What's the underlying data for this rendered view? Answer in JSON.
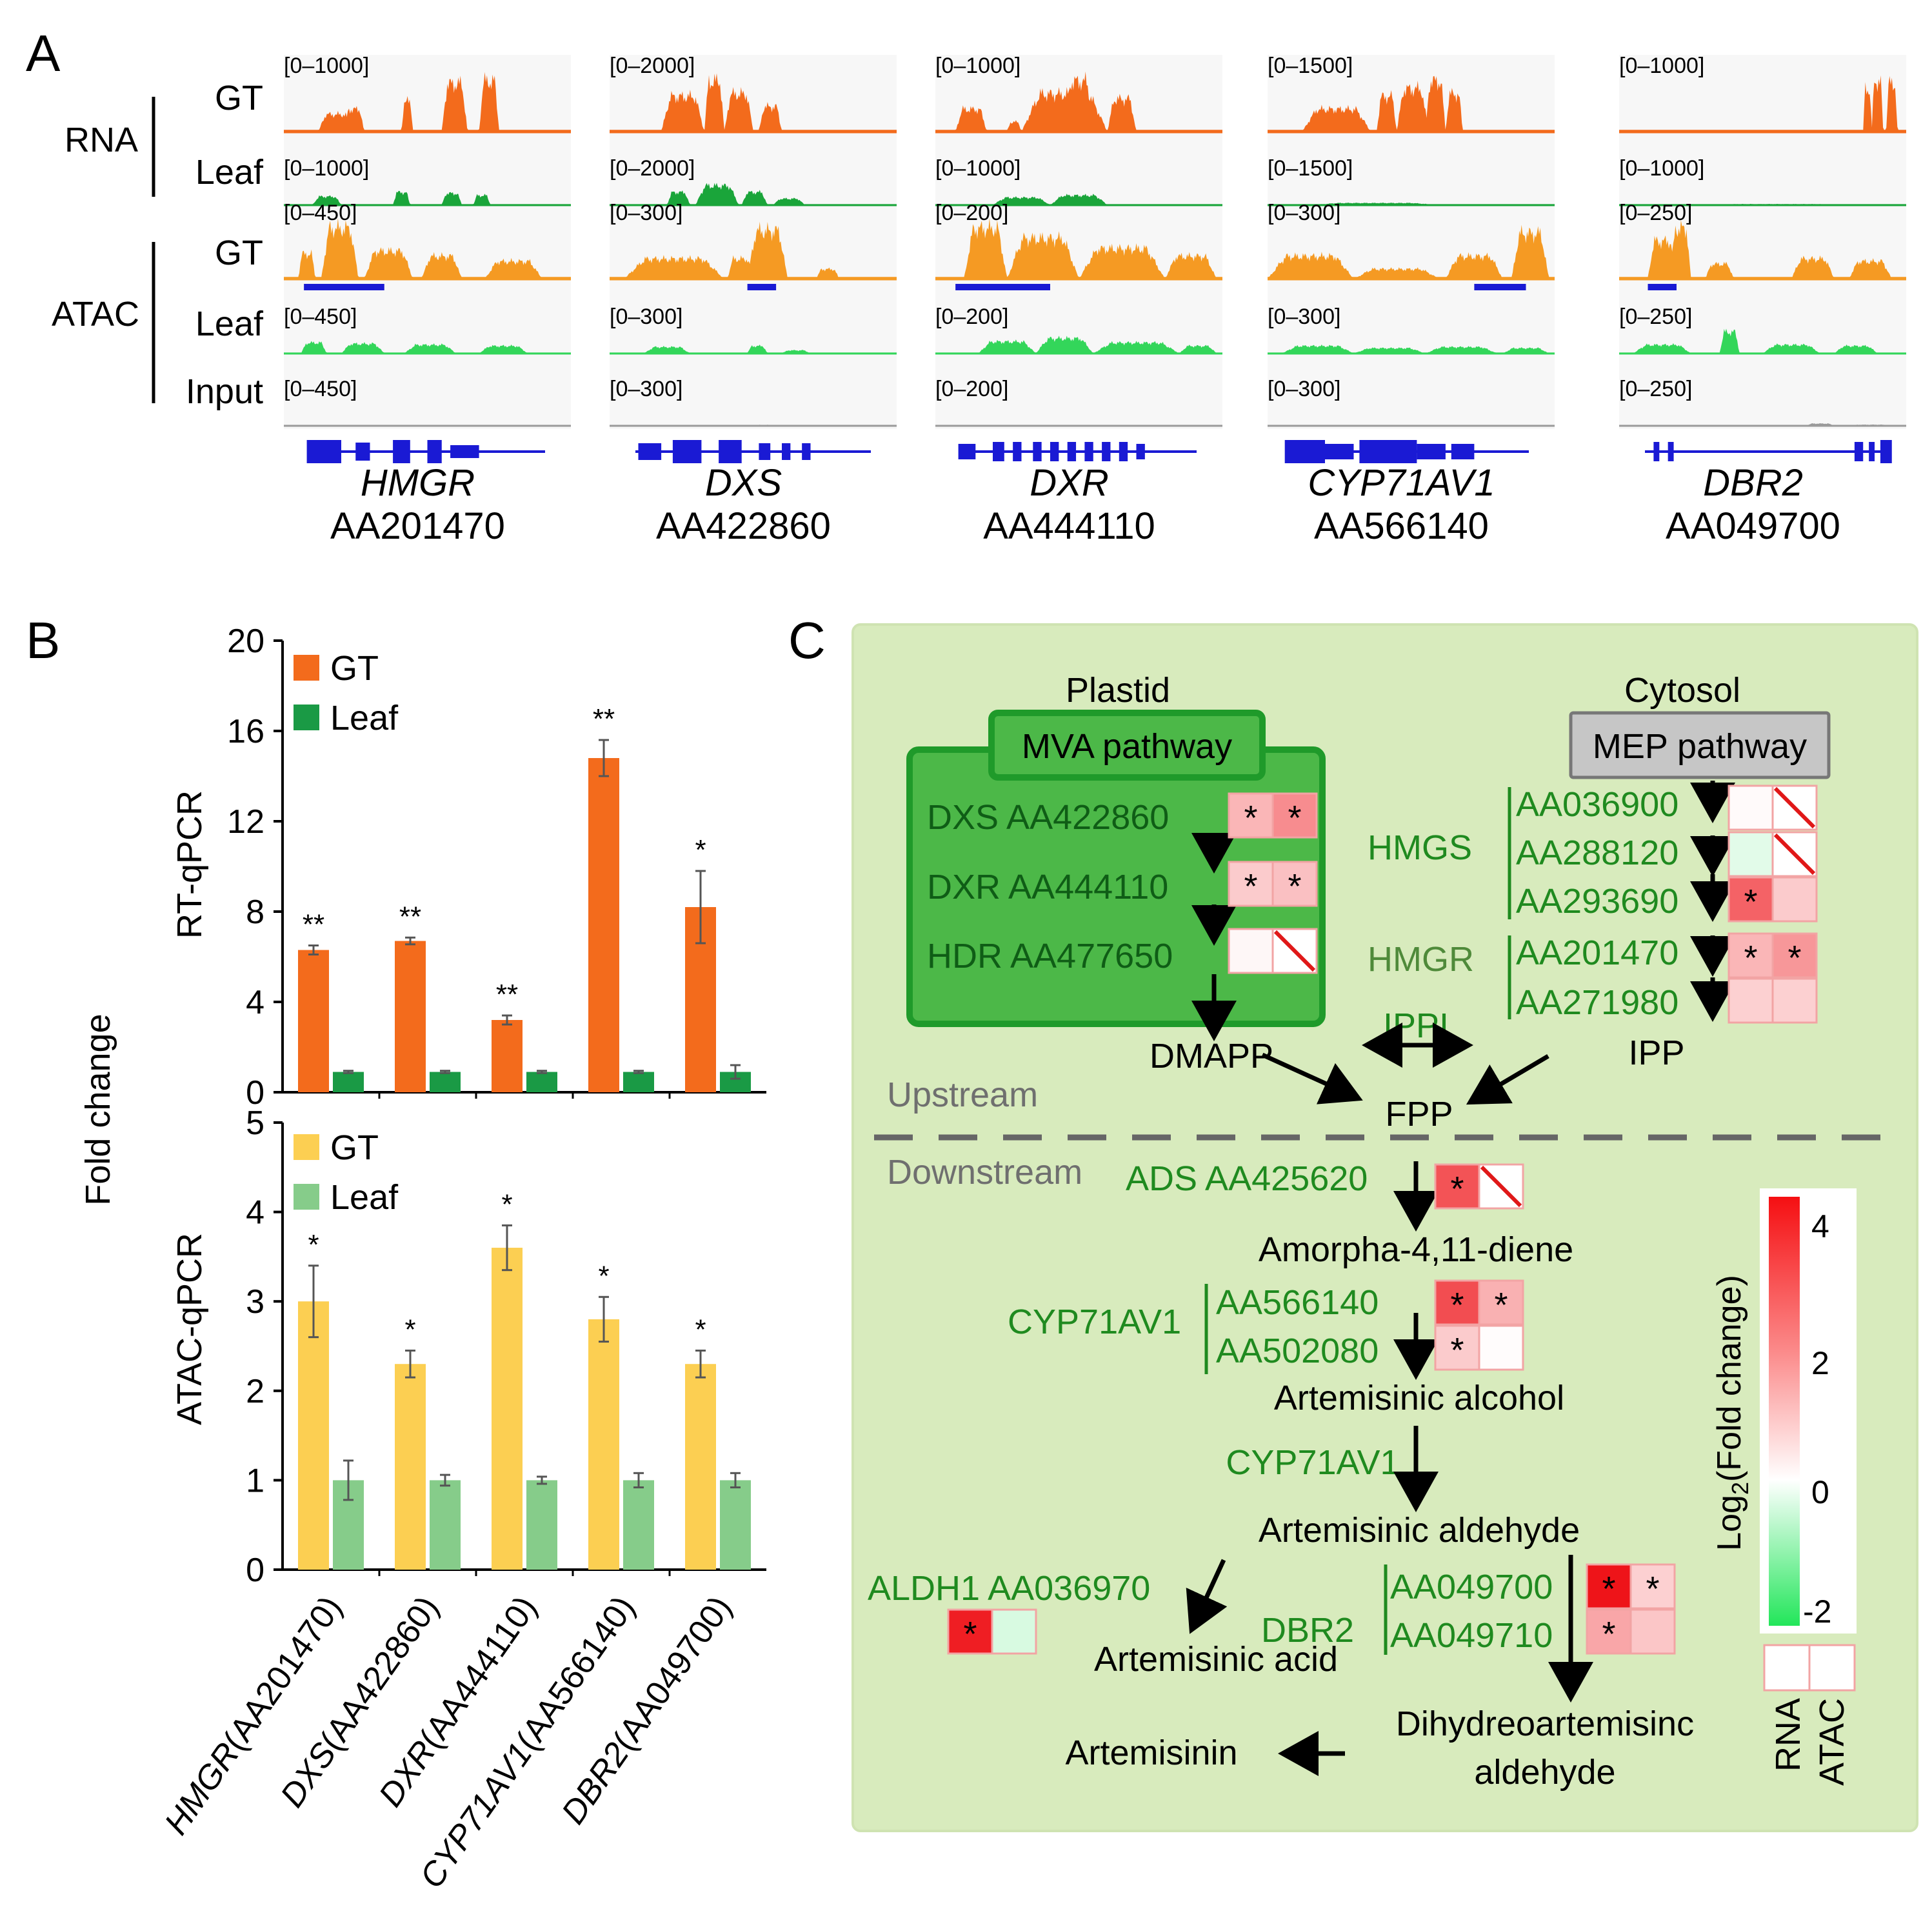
{
  "colors": {
    "rna_gt": "#f36b1c",
    "rna_leaf": "#1aa53a",
    "atac_gt": "#f59a23",
    "atac_leaf": "#33d65a",
    "input": "#9a9a9a",
    "gene_model": "#1a1ad4",
    "bar_rt_gt": "#f36b1c",
    "bar_rt_leaf": "#1a9a45",
    "bar_atac_gt": "#fccf52",
    "bar_atac_leaf": "#86cc8a",
    "pathway_bg": "#d8ebbd",
    "mva_box": "#4cb848",
    "green_text": "#1f8a1f"
  },
  "panelA": {
    "label": "A",
    "group_labels": {
      "rna": "RNA",
      "atac": "ATAC"
    },
    "track_labels": [
      "GT",
      "Leaf",
      "GT",
      "Leaf",
      "Input"
    ],
    "genes": [
      {
        "name": "HMGR",
        "id": "AA201470",
        "ranges": [
          "[0–1000]",
          "[0–1000]",
          "[0–450]",
          "[0–450]",
          "[0–450]"
        ]
      },
      {
        "name": "DXS",
        "id": "AA422860",
        "ranges": [
          "[0–2000]",
          "[0–2000]",
          "[0–300]",
          "[0–300]",
          "[0–300]"
        ]
      },
      {
        "name": "DXR",
        "id": "AA444110",
        "ranges": [
          "[0–1000]",
          "[0–1000]",
          "[0–200]",
          "[0–200]",
          "[0–200]"
        ]
      },
      {
        "name": "CYP71AV1",
        "id": "AA566140",
        "ranges": [
          "[0–1500]",
          "[0–1500]",
          "[0–300]",
          "[0–300]",
          "[0–300]"
        ]
      },
      {
        "name": "DBR2",
        "id": "AA049700",
        "ranges": [
          "[0–1000]",
          "[0–1000]",
          "[0–250]",
          "[0–250]",
          "[0–250]"
        ]
      }
    ]
  },
  "chart_data": [
    {
      "type": "bar",
      "panel": "B",
      "title": "",
      "ylabel": "RT-qPCR",
      "shared_ylabel": "Fold change",
      "ylim": [
        0,
        20
      ],
      "yticks": [
        0,
        4,
        8,
        12,
        16,
        20
      ],
      "categories": [
        "HMGR(AA201470)",
        "DXS(AA422860)",
        "DXR(AA444110)",
        "CYP71AV1(AA566140)",
        "DBR2(AA049700)"
      ],
      "category_genes": [
        "HMGR",
        "DXS",
        "DXR",
        "CYP71AV1",
        "DBR2"
      ],
      "category_ids": [
        "(AA201470)",
        "(AA422860)",
        "(AA444110)",
        "(AA566140)",
        "(AA049700)"
      ],
      "series": [
        {
          "name": "GT",
          "values": [
            6.3,
            6.7,
            3.2,
            14.8,
            8.2
          ],
          "errors": [
            0.2,
            0.15,
            0.2,
            0.8,
            1.6
          ],
          "significance": [
            "**",
            "**",
            "**",
            "**",
            "*"
          ]
        },
        {
          "name": "Leaf",
          "values": [
            0.9,
            0.9,
            0.9,
            0.9,
            0.9
          ],
          "errors": [
            0.05,
            0.05,
            0.05,
            0.05,
            0.3
          ],
          "significance": [
            "",
            "",
            "",
            "",
            ""
          ]
        }
      ],
      "legend": [
        "GT",
        "Leaf"
      ]
    },
    {
      "type": "bar",
      "panel": "B",
      "title": "",
      "ylabel": "ATAC-qPCR",
      "ylim": [
        0,
        5
      ],
      "yticks": [
        0,
        1,
        2,
        3,
        4,
        5
      ],
      "categories": [
        "HMGR(AA201470)",
        "DXS(AA422860)",
        "DXR(AA444110)",
        "CYP71AV1(AA566140)",
        "DBR2(AA049700)"
      ],
      "series": [
        {
          "name": "GT",
          "values": [
            3.0,
            2.3,
            3.6,
            2.8,
            2.3
          ],
          "errors": [
            0.4,
            0.15,
            0.25,
            0.25,
            0.15
          ],
          "significance": [
            "*",
            "*",
            "*",
            "*",
            "*"
          ]
        },
        {
          "name": "Leaf",
          "values": [
            1.0,
            1.0,
            1.0,
            1.0,
            1.0
          ],
          "errors": [
            0.22,
            0.06,
            0.04,
            0.08,
            0.08
          ],
          "significance": [
            "",
            "",
            "",
            "",
            ""
          ]
        }
      ],
      "legend": [
        "GT",
        "Leaf"
      ]
    }
  ],
  "panelB": {
    "label": "B"
  },
  "panelC": {
    "label": "C",
    "compartments": {
      "plastid": "Plastid",
      "cytosol": "Cytosol"
    },
    "mva_title": "MVA pathway",
    "mep_title": "MEP pathway",
    "mva_genes": [
      "DXS AA422860",
      "DXR AA444110",
      "HDR AA477650"
    ],
    "hmgs_label": "HMGS",
    "hmgs_ids": [
      "AA036900",
      "AA288120",
      "AA293690"
    ],
    "hmgr_label": "HMGR",
    "hmgr_ids": [
      "AA201470",
      "AA271980"
    ],
    "metabolites": {
      "dmapp": "DMAPP",
      "ippi": "IPPI",
      "ipp": "IPP",
      "fpp": "FPP",
      "amorpha": "Amorpha-4,11-diene",
      "alcohol": "Artemisinic alcohol",
      "aldehyde": "Artemisinic aldehyde",
      "acid": "Artemisinic acid",
      "dihydro1": "Dihydreoartemisinc",
      "dihydro2": "aldehyde",
      "artemisinin": "Artemisinin"
    },
    "upstream": "Upstream",
    "downstream": "Downstream",
    "ads": "ADS AA425620",
    "cyp_label": "CYP71AV1",
    "cyp_ids": [
      "AA566140",
      "AA502080"
    ],
    "cyp2": "CYP71AV1",
    "aldh1": "ALDH1 AA036970",
    "dbr2_label": "DBR2",
    "dbr2_ids": [
      "AA049700",
      "AA049710"
    ],
    "colorbar": {
      "title_main": "Log",
      "title_sub": "2",
      "title_rest": "(Fold change)",
      "ticks": [
        "4",
        "2",
        "0",
        "-2"
      ],
      "range": [
        -2.2,
        4.8
      ],
      "key_labels": [
        "RNA",
        "ATAC"
      ]
    },
    "heat": {
      "dxs": [
        {
          "v": 1.4,
          "s": "*"
        },
        {
          "v": 2.2,
          "s": "*"
        }
      ],
      "dxr": [
        {
          "v": 1.0,
          "s": "*"
        },
        {
          "v": 1.2,
          "s": "*"
        }
      ],
      "hdr": [
        {
          "v": 0.15,
          "s": ""
        },
        {
          "v": null,
          "s": ""
        }
      ],
      "hmgs1": [
        {
          "v": 0.1,
          "s": ""
        },
        {
          "v": null,
          "s": ""
        }
      ],
      "hmgs2": [
        {
          "v": -0.3,
          "s": ""
        },
        {
          "v": null,
          "s": ""
        }
      ],
      "hmgs3": [
        {
          "v": 3.0,
          "s": "*"
        },
        {
          "v": 1.0,
          "s": ""
        }
      ],
      "hmgr1": [
        {
          "v": 1.4,
          "s": "*"
        },
        {
          "v": 2.0,
          "s": "*"
        }
      ],
      "hmgr2": [
        {
          "v": 0.9,
          "s": ""
        },
        {
          "v": 0.9,
          "s": ""
        }
      ],
      "ads": [
        {
          "v": 3.3,
          "s": "*"
        },
        {
          "v": null,
          "s": ""
        }
      ],
      "cyp1": [
        {
          "v": 3.4,
          "s": "*"
        },
        {
          "v": 1.5,
          "s": "*"
        }
      ],
      "cyp2": [
        {
          "v": 1.0,
          "s": "*"
        },
        {
          "v": 0.05,
          "s": ""
        }
      ],
      "aldh": [
        {
          "v": 4.3,
          "s": "*"
        },
        {
          "v": -0.4,
          "s": ""
        }
      ],
      "dbr1": [
        {
          "v": 4.5,
          "s": "*"
        },
        {
          "v": 0.9,
          "s": "*"
        }
      ],
      "dbr2": [
        {
          "v": 1.7,
          "s": "*"
        },
        {
          "v": 1.1,
          "s": ""
        }
      ]
    }
  }
}
